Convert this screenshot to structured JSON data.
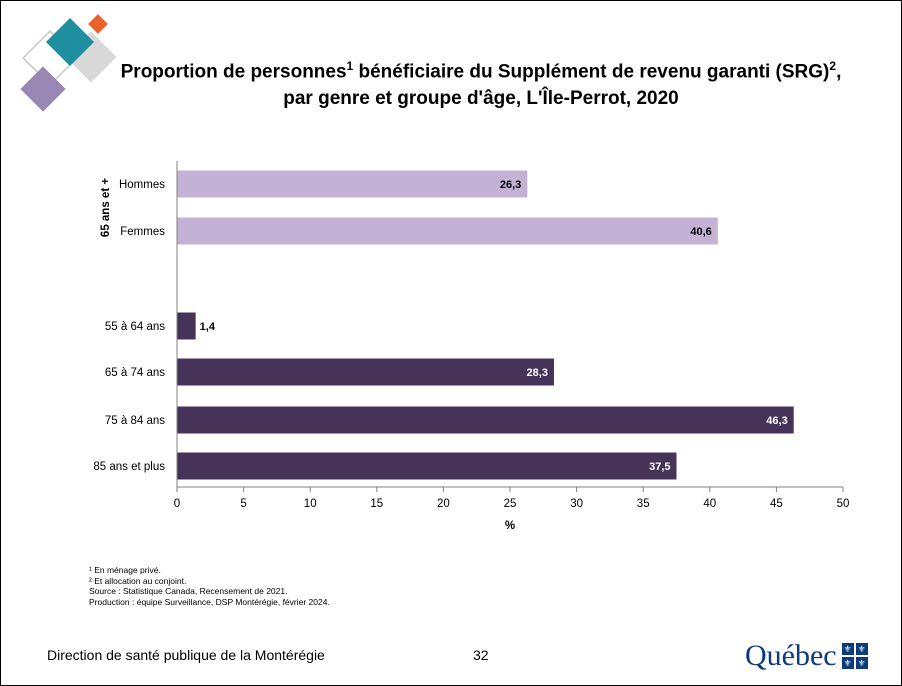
{
  "title": {
    "line1_part1": "Proportion de personnes",
    "line1_sup1": "1",
    "line1_part2": " bénéficiaire du Supplément de revenu garanti (SRG)",
    "line1_sup2": "2",
    "line1_part3": ",",
    "line2": "par genre et groupe d'âge, L'Île-Perrot, 2020"
  },
  "footnotes": [
    "¹ En ménage privé.",
    "² Et allocation au conjoint.",
    "Source : Statistique Canada, Recensement de 2021.",
    "Production : équipe Surveillance, DSP Montérégie, février 2024."
  ],
  "footer": {
    "organization": "Direction de santé publique de la Montérégie",
    "page_number": "32",
    "logo_text": "Québec",
    "logo_glyph": "⚜"
  },
  "colors": {
    "genre_bar": "#c4b2d4",
    "age_bar": "#483358",
    "logo_teal": "#1f8fa0",
    "logo_orange": "#e8622a",
    "logo_purple": "#9a88b4",
    "logo_grey": "#d8d8d8"
  },
  "chart_data": {
    "type": "bar",
    "orientation": "horizontal",
    "title": "Proportion de personnes bénéficiaire du Supplément de revenu garanti (SRG), par genre et groupe d'âge, L'Île-Perrot, 2020",
    "xlabel": "%",
    "xlim": [
      0,
      50
    ],
    "xticks": [
      "0",
      "5",
      "10",
      "15",
      "20",
      "25",
      "30",
      "35",
      "40",
      "45",
      "50"
    ],
    "grid": false,
    "groups": [
      {
        "label": "65 ans et +",
        "color": "#c4b2d4",
        "label_color": "#000000",
        "categories": [
          "Hommes",
          "Femmes"
        ],
        "values": [
          26.3,
          40.6
        ],
        "value_labels": [
          "26,3",
          "40,6"
        ]
      },
      {
        "label": "",
        "color": "#483358",
        "label_color": "#ffffff",
        "categories": [
          "55 à 64 ans",
          "65 à 74 ans",
          "75 à 84 ans",
          "85 ans et plus"
        ],
        "values": [
          1.4,
          28.3,
          46.3,
          37.5
        ],
        "value_labels": [
          "1,4",
          "28,3",
          "46,3",
          "37,5"
        ]
      }
    ]
  }
}
